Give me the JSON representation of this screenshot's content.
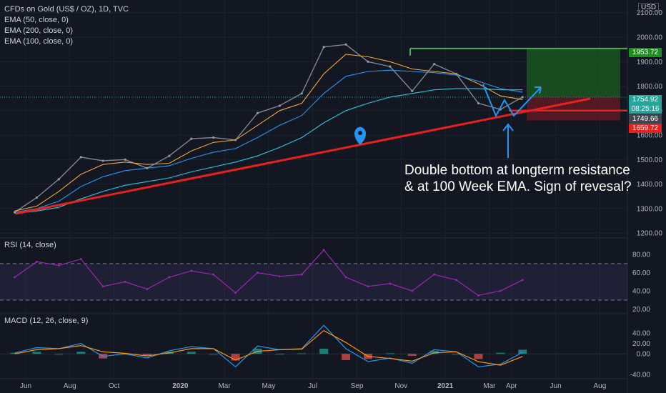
{
  "legend": {
    "symbol": "CFDs on Gold (US$ / OZ), 1D, TVC",
    "ema50": "EMA (50, close, 0)",
    "ema200": "EMA (200, close, 0)",
    "ema100": "EMA (100, close, 0)"
  },
  "currency": "USD",
  "annotation": {
    "line1": "Double bottom at longterm resistance",
    "line2": "& at 100 Week EMA. Sign of revesal?"
  },
  "price_tags": {
    "target": "1953.72",
    "last": "1754.92",
    "countdown": "08:25:16",
    "ema_value": "1749.66",
    "stop": "1659.72"
  },
  "rsi_title": "RSI (14, close)",
  "macd_title": "MACD (12, 26, close, 9)",
  "colors": {
    "background": "#131722",
    "ema50": "#f0a830",
    "ema100": "#2196f3",
    "ema200": "#26c6da",
    "trendline": "#e8201e",
    "target_box": "#1b5e20",
    "stop_box": "#6b1a24",
    "rsi_line": "#9c27b0",
    "macd_line": "#2196f3",
    "signal_line": "#ff9800"
  },
  "chart_data": [
    {
      "type": "line",
      "title": "CFDs on Gold (US$ / OZ), 1D, TVC",
      "x_ticks": [
        "Jun",
        "Aug",
        "Oct",
        "2020",
        "Mar",
        "May",
        "Jul",
        "Sep",
        "Nov",
        "2021",
        "Mar",
        "Apr",
        "Jun",
        "Aug"
      ],
      "y_ticks": [
        1200.0,
        1300.0,
        1400.0,
        1500.0,
        1600.0,
        1700.0,
        1800.0,
        1900.0,
        2000.0,
        2100.0
      ],
      "ylim": [
        1180,
        2140
      ],
      "x": [
        "2019-05",
        "2019-06",
        "2019-07",
        "2019-08",
        "2019-09",
        "2019-10",
        "2019-11",
        "2019-12",
        "2020-01",
        "2020-02",
        "2020-03",
        "2020-04",
        "2020-05",
        "2020-06",
        "2020-07",
        "2020-08",
        "2020-09",
        "2020-10",
        "2020-11",
        "2020-12",
        "2021-01",
        "2021-02",
        "2021-03",
        "2021-04"
      ],
      "series": [
        {
          "name": "Close",
          "values": [
            1285,
            1345,
            1420,
            1510,
            1495,
            1500,
            1465,
            1515,
            1585,
            1590,
            1580,
            1690,
            1720,
            1770,
            1960,
            1970,
            1900,
            1880,
            1780,
            1890,
            1850,
            1730,
            1705,
            1755
          ]
        },
        {
          "name": "EMA (50, close, 0)",
          "values": [
            1290,
            1310,
            1370,
            1440,
            1480,
            1490,
            1480,
            1485,
            1535,
            1570,
            1580,
            1640,
            1700,
            1730,
            1850,
            1930,
            1920,
            1900,
            1870,
            1860,
            1850,
            1810,
            1760,
            1745
          ]
        },
        {
          "name": "EMA (100, close, 0)",
          "values": [
            1285,
            1300,
            1330,
            1390,
            1430,
            1455,
            1465,
            1475,
            1505,
            1530,
            1545,
            1590,
            1640,
            1680,
            1770,
            1840,
            1860,
            1865,
            1860,
            1855,
            1845,
            1820,
            1790,
            1775
          ]
        },
        {
          "name": "EMA (200, close, 0)",
          "values": [
            1280,
            1290,
            1305,
            1340,
            1370,
            1395,
            1410,
            1425,
            1450,
            1470,
            1490,
            1515,
            1550,
            1590,
            1650,
            1700,
            1730,
            1755,
            1770,
            1785,
            1790,
            1790,
            1785,
            1785
          ]
        }
      ],
      "annotations": [
        "Double bottom at longterm resistance & at 100 Week EMA. Sign of revesal?"
      ],
      "price_labels": [
        1953.72,
        1754.92,
        1749.66,
        1659.72
      ],
      "grid": true
    },
    {
      "type": "line",
      "title": "RSI (14, close)",
      "y_ticks": [
        20.0,
        40.0,
        60.0,
        80.0
      ],
      "ylim": [
        15,
        95
      ],
      "bands": [
        30,
        70
      ],
      "x": [
        "2019-05",
        "2019-06",
        "2019-07",
        "2019-08",
        "2019-09",
        "2019-10",
        "2019-11",
        "2019-12",
        "2020-01",
        "2020-02",
        "2020-03",
        "2020-04",
        "2020-05",
        "2020-06",
        "2020-07",
        "2020-08",
        "2020-09",
        "2020-10",
        "2020-11",
        "2020-12",
        "2021-01",
        "2021-02",
        "2021-03",
        "2021-04"
      ],
      "series": [
        {
          "name": "RSI",
          "values": [
            55,
            72,
            68,
            75,
            45,
            50,
            42,
            55,
            62,
            58,
            38,
            60,
            56,
            58,
            85,
            55,
            45,
            48,
            40,
            58,
            52,
            35,
            40,
            52
          ]
        }
      ]
    },
    {
      "type": "line",
      "title": "MACD (12, 26, close, 9)",
      "y_ticks": [
        -40.0,
        0.0,
        20.0,
        40.0
      ],
      "ylim": [
        -48,
        72
      ],
      "x": [
        "2019-05",
        "2019-06",
        "2019-07",
        "2019-08",
        "2019-09",
        "2019-10",
        "2019-11",
        "2019-12",
        "2020-01",
        "2020-02",
        "2020-03",
        "2020-04",
        "2020-05",
        "2020-06",
        "2020-07",
        "2020-08",
        "2020-09",
        "2020-10",
        "2020-11",
        "2020-12",
        "2021-01",
        "2021-02",
        "2021-03",
        "2021-04"
      ],
      "series": [
        {
          "name": "MACD",
          "values": [
            2,
            12,
            10,
            20,
            -5,
            0,
            -8,
            6,
            14,
            10,
            -25,
            15,
            8,
            10,
            55,
            10,
            -15,
            -8,
            -18,
            8,
            4,
            -25,
            -20,
            3
          ]
        },
        {
          "name": "Signal",
          "values": [
            0,
            8,
            10,
            16,
            4,
            1,
            -4,
            2,
            10,
            10,
            -12,
            5,
            8,
            9,
            45,
            22,
            -5,
            -9,
            -14,
            2,
            4,
            -15,
            -22,
            -5
          ]
        }
      ]
    }
  ]
}
